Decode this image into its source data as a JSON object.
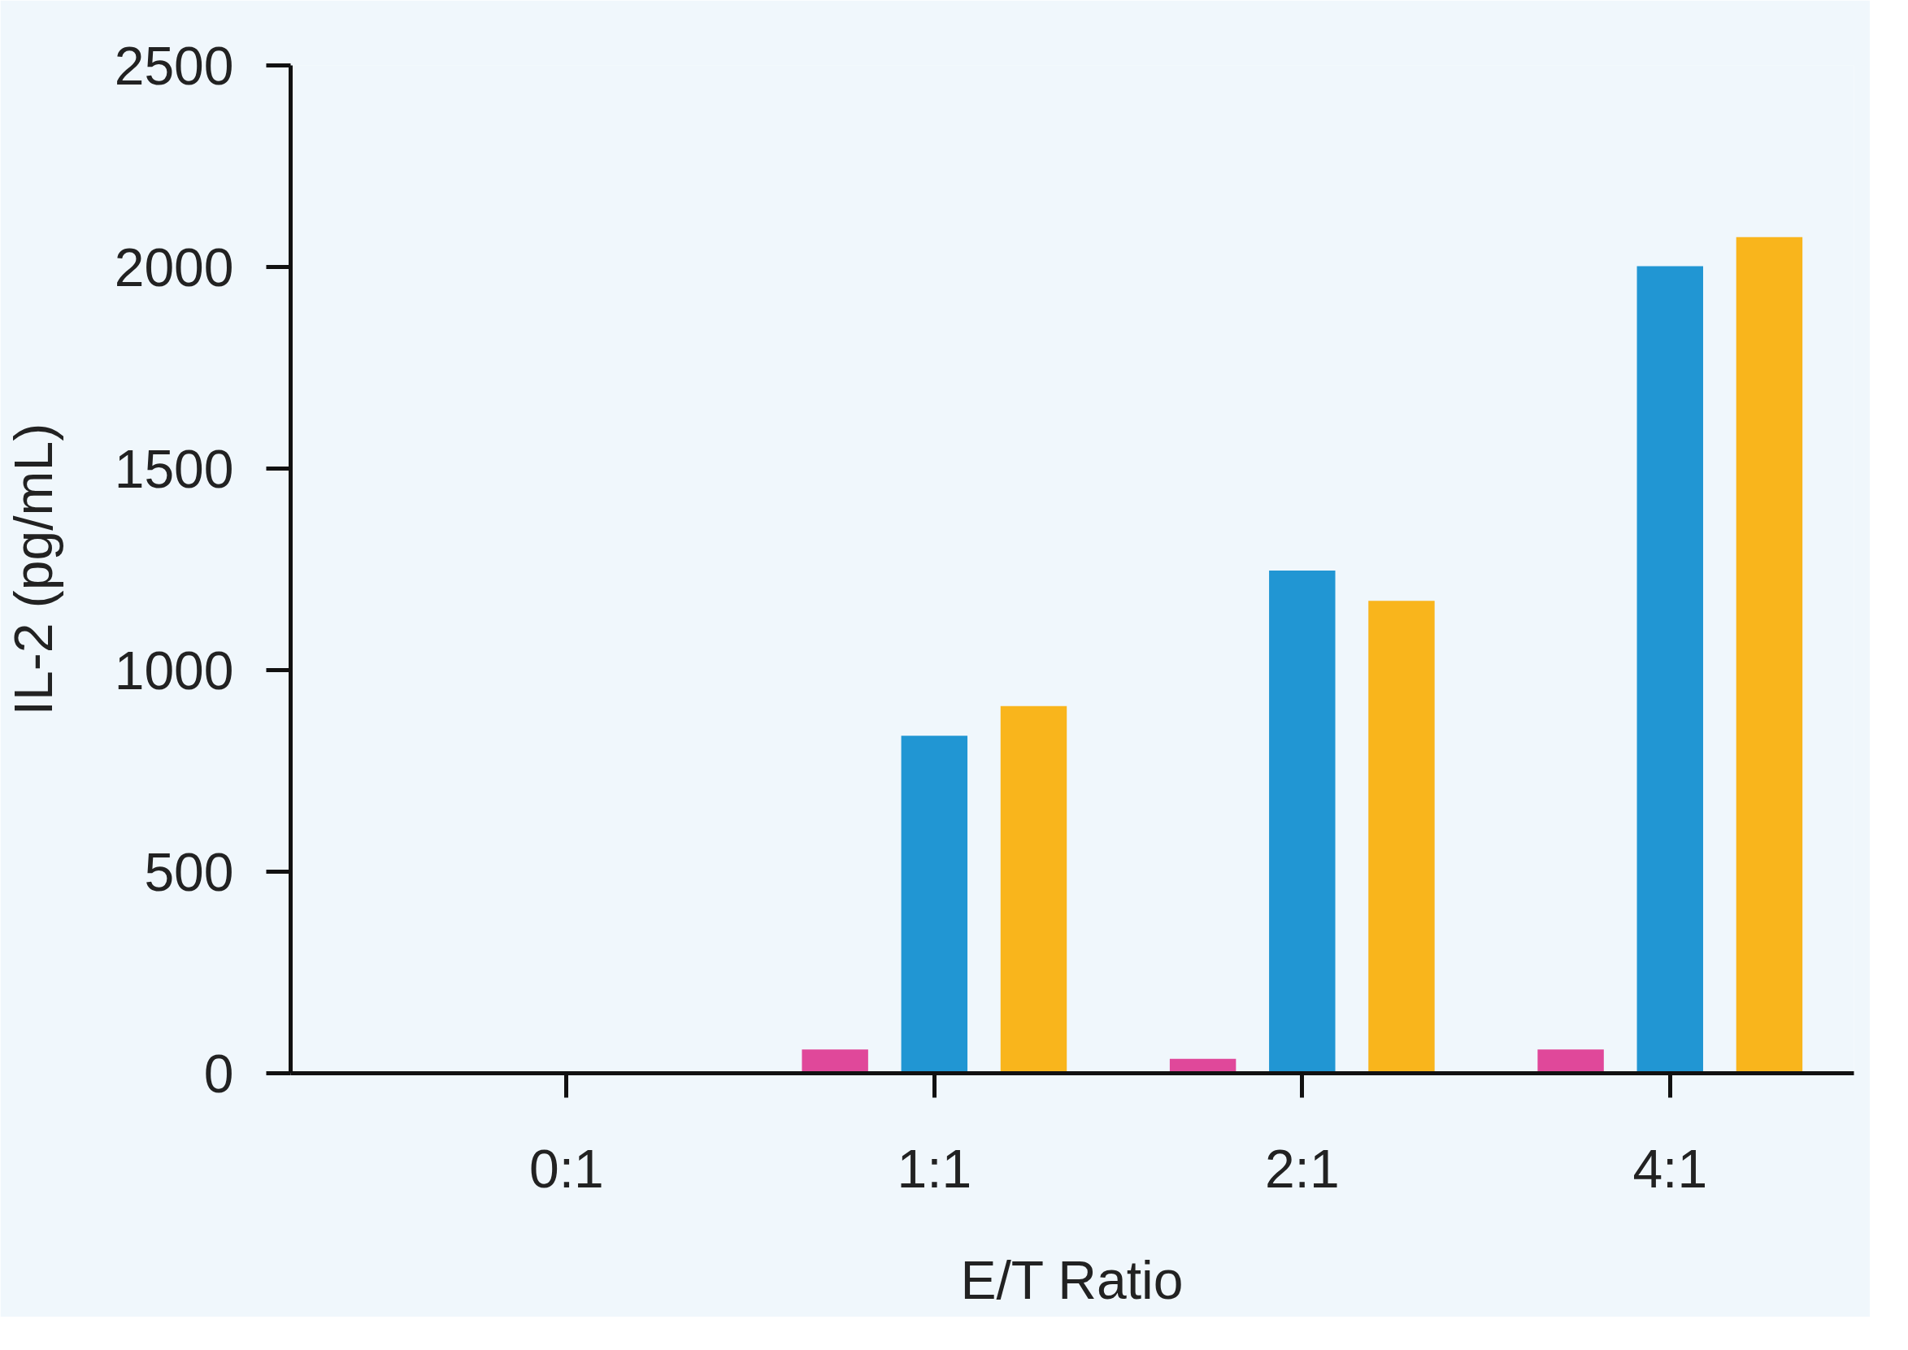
{
  "chart_data": {
    "type": "bar",
    "xlabel": "E/T Ratio",
    "ylabel": "IL-2 (pg/mL)",
    "categories": [
      "0:1",
      "1:1",
      "2:1",
      "4:1"
    ],
    "series": [
      {
        "color": "#e0489a",
        "values": [
          null,
          59,
          36,
          59
        ]
      },
      {
        "color": "#2196d3",
        "values": [
          null,
          837,
          1247,
          2002
        ]
      },
      {
        "color": "#f9b51c",
        "values": [
          null,
          911,
          1172,
          2074
        ]
      }
    ],
    "ylim": [
      0,
      2500
    ],
    "yticks": [
      0,
      500,
      1000,
      1500,
      2000,
      2500
    ],
    "grid": false
  }
}
